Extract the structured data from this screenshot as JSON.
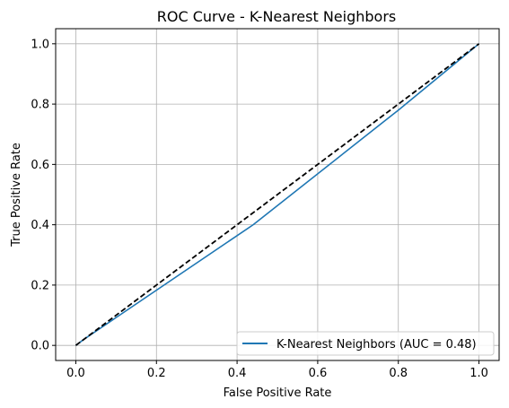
{
  "chart_data": {
    "type": "line",
    "title": "ROC Curve - K-Nearest Neighbors",
    "xlabel": "False Positive Rate",
    "ylabel": "True Positive Rate",
    "xlim": [
      -0.05,
      1.05
    ],
    "ylim": [
      -0.05,
      1.05
    ],
    "xticks": [
      0.0,
      0.2,
      0.4,
      0.6,
      0.8,
      1.0
    ],
    "yticks": [
      0.0,
      0.2,
      0.4,
      0.6,
      0.8,
      1.0
    ],
    "xtick_labels": [
      "0.0",
      "0.2",
      "0.4",
      "0.6",
      "0.8",
      "1.0"
    ],
    "ytick_labels": [
      "0.0",
      "0.2",
      "0.4",
      "0.6",
      "0.8",
      "1.0"
    ],
    "grid": true,
    "legend_position": "bottom-right",
    "series": [
      {
        "name": "K-Nearest Neighbors (AUC = 0.48)",
        "color": "#1f77b4",
        "style": "solid",
        "x": [
          0.0,
          0.02,
          0.44,
          0.8,
          1.0
        ],
        "y": [
          0.0,
          0.02,
          0.4,
          0.78,
          1.0
        ]
      },
      {
        "name": "",
        "color": "#000000",
        "style": "dashed",
        "x": [
          0.0,
          1.0
        ],
        "y": [
          0.0,
          1.0
        ]
      }
    ]
  }
}
